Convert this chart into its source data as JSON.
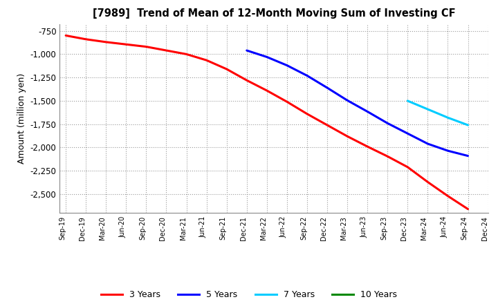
{
  "title": "[7989]  Trend of Mean of 12-Month Moving Sum of Investing CF",
  "ylabel": "Amount (million yen)",
  "background_color": "#ffffff",
  "grid_color": "#999999",
  "ylim": [
    -2700,
    -680
  ],
  "yticks": [
    -2500,
    -2250,
    -2000,
    -1750,
    -1500,
    -1250,
    -1000,
    -750
  ],
  "series": {
    "3years": {
      "color": "#ff0000",
      "label": "3 Years",
      "x": [
        "Sep-19",
        "Dec-19",
        "Mar-20",
        "Jun-20",
        "Sep-20",
        "Dec-20",
        "Mar-21",
        "Jun-21",
        "Sep-21",
        "Dec-21",
        "Mar-22",
        "Jun-22",
        "Sep-22",
        "Dec-22",
        "Mar-23",
        "Jun-23",
        "Sep-23",
        "Dec-23",
        "Mar-24",
        "Jun-24",
        "Sep-24"
      ],
      "y": [
        -800,
        -840,
        -870,
        -895,
        -920,
        -960,
        -1000,
        -1065,
        -1160,
        -1280,
        -1390,
        -1510,
        -1640,
        -1760,
        -1880,
        -1990,
        -2095,
        -2210,
        -2370,
        -2520,
        -2660
      ]
    },
    "5years": {
      "color": "#0000ff",
      "label": "5 Years",
      "x": [
        "Dec-21",
        "Mar-22",
        "Jun-22",
        "Sep-22",
        "Dec-22",
        "Mar-23",
        "Jun-23",
        "Sep-23",
        "Dec-23",
        "Mar-24",
        "Jun-24",
        "Sep-24"
      ],
      "y": [
        -960,
        -1030,
        -1120,
        -1230,
        -1360,
        -1495,
        -1615,
        -1740,
        -1850,
        -1960,
        -2035,
        -2090
      ]
    },
    "7years": {
      "color": "#00ccff",
      "label": "7 Years",
      "x": [
        "Dec-23",
        "Mar-24",
        "Jun-24",
        "Sep-24"
      ],
      "y": [
        -1500,
        -1590,
        -1680,
        -1760
      ]
    },
    "10years": {
      "color": "#008800",
      "label": "10 Years",
      "x": [],
      "y": []
    }
  },
  "x_tick_labels": [
    "Sep-19",
    "Dec-19",
    "Mar-20",
    "Jun-20",
    "Sep-20",
    "Dec-20",
    "Mar-21",
    "Jun-21",
    "Sep-21",
    "Dec-21",
    "Mar-22",
    "Jun-22",
    "Sep-22",
    "Dec-22",
    "Mar-23",
    "Jun-23",
    "Sep-23",
    "Dec-23",
    "Mar-24",
    "Jun-24",
    "Sep-24",
    "Dec-24"
  ],
  "legend_colors": [
    "#ff0000",
    "#0000ff",
    "#00ccff",
    "#008800"
  ],
  "legend_labels": [
    "3 Years",
    "5 Years",
    "7 Years",
    "10 Years"
  ],
  "line_width": 2.2
}
